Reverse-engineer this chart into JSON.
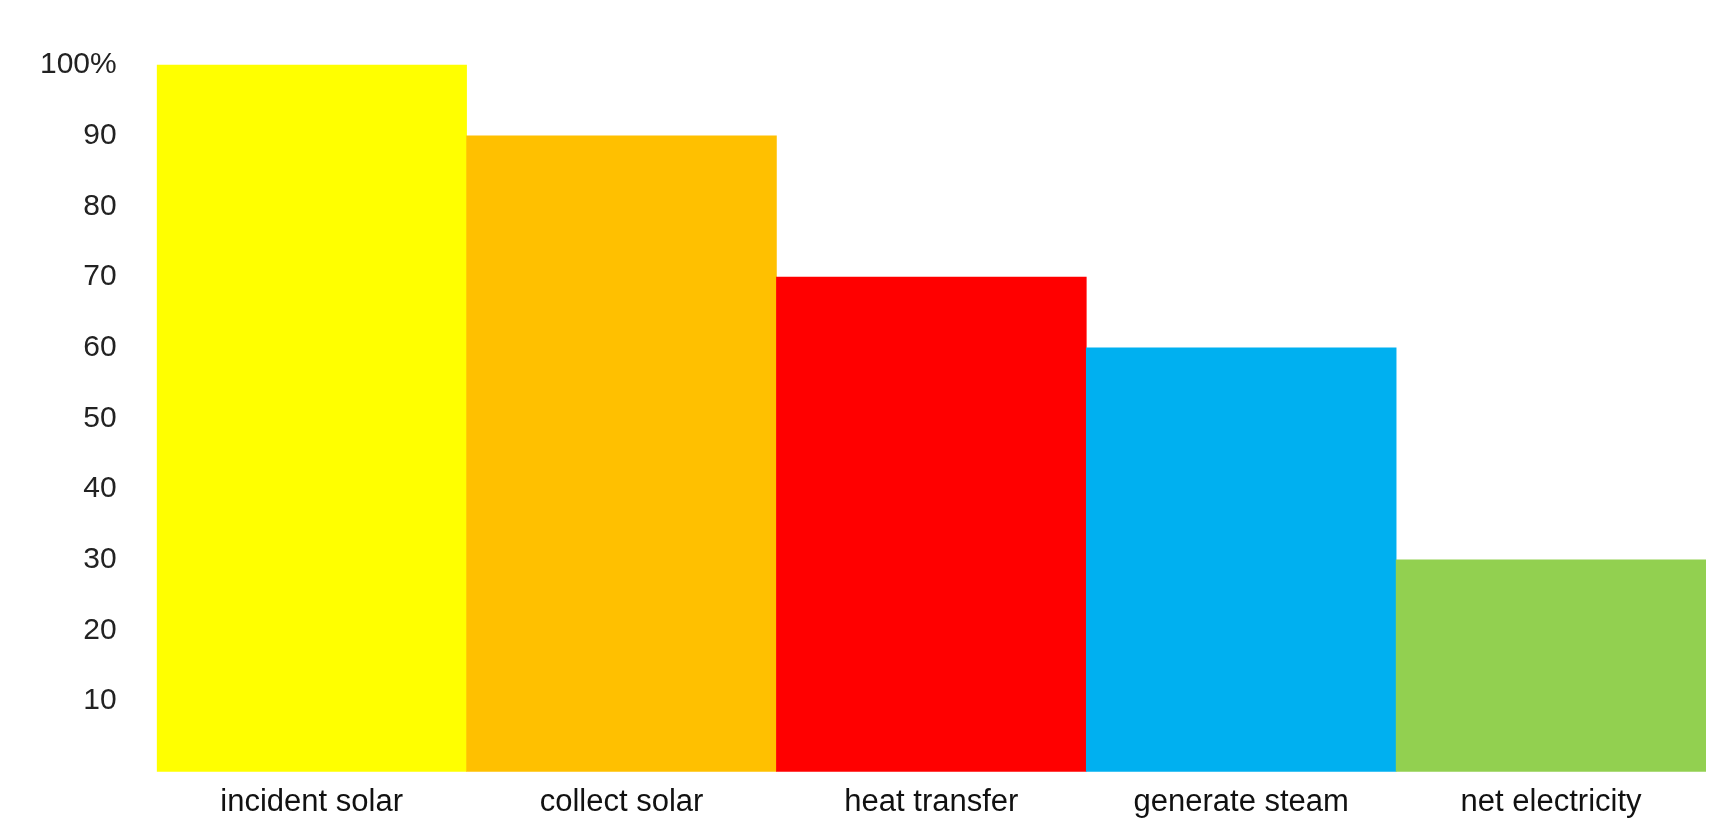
{
  "chart_data": {
    "type": "bar",
    "categories": [
      "incident solar",
      "collect solar",
      "heat transfer",
      "generate steam",
      "net electricity"
    ],
    "values": [
      100,
      90,
      70,
      60,
      30
    ],
    "colors": [
      "#ffff00",
      "#ffc000",
      "#ff0000",
      "#00b0f0",
      "#92d050"
    ],
    "ylim": [
      0,
      101
    ],
    "yticks": [
      10,
      20,
      30,
      40,
      50,
      60,
      70,
      80,
      90,
      {
        "value": 100,
        "label": "100%"
      }
    ],
    "grid": false,
    "legend": false
  }
}
